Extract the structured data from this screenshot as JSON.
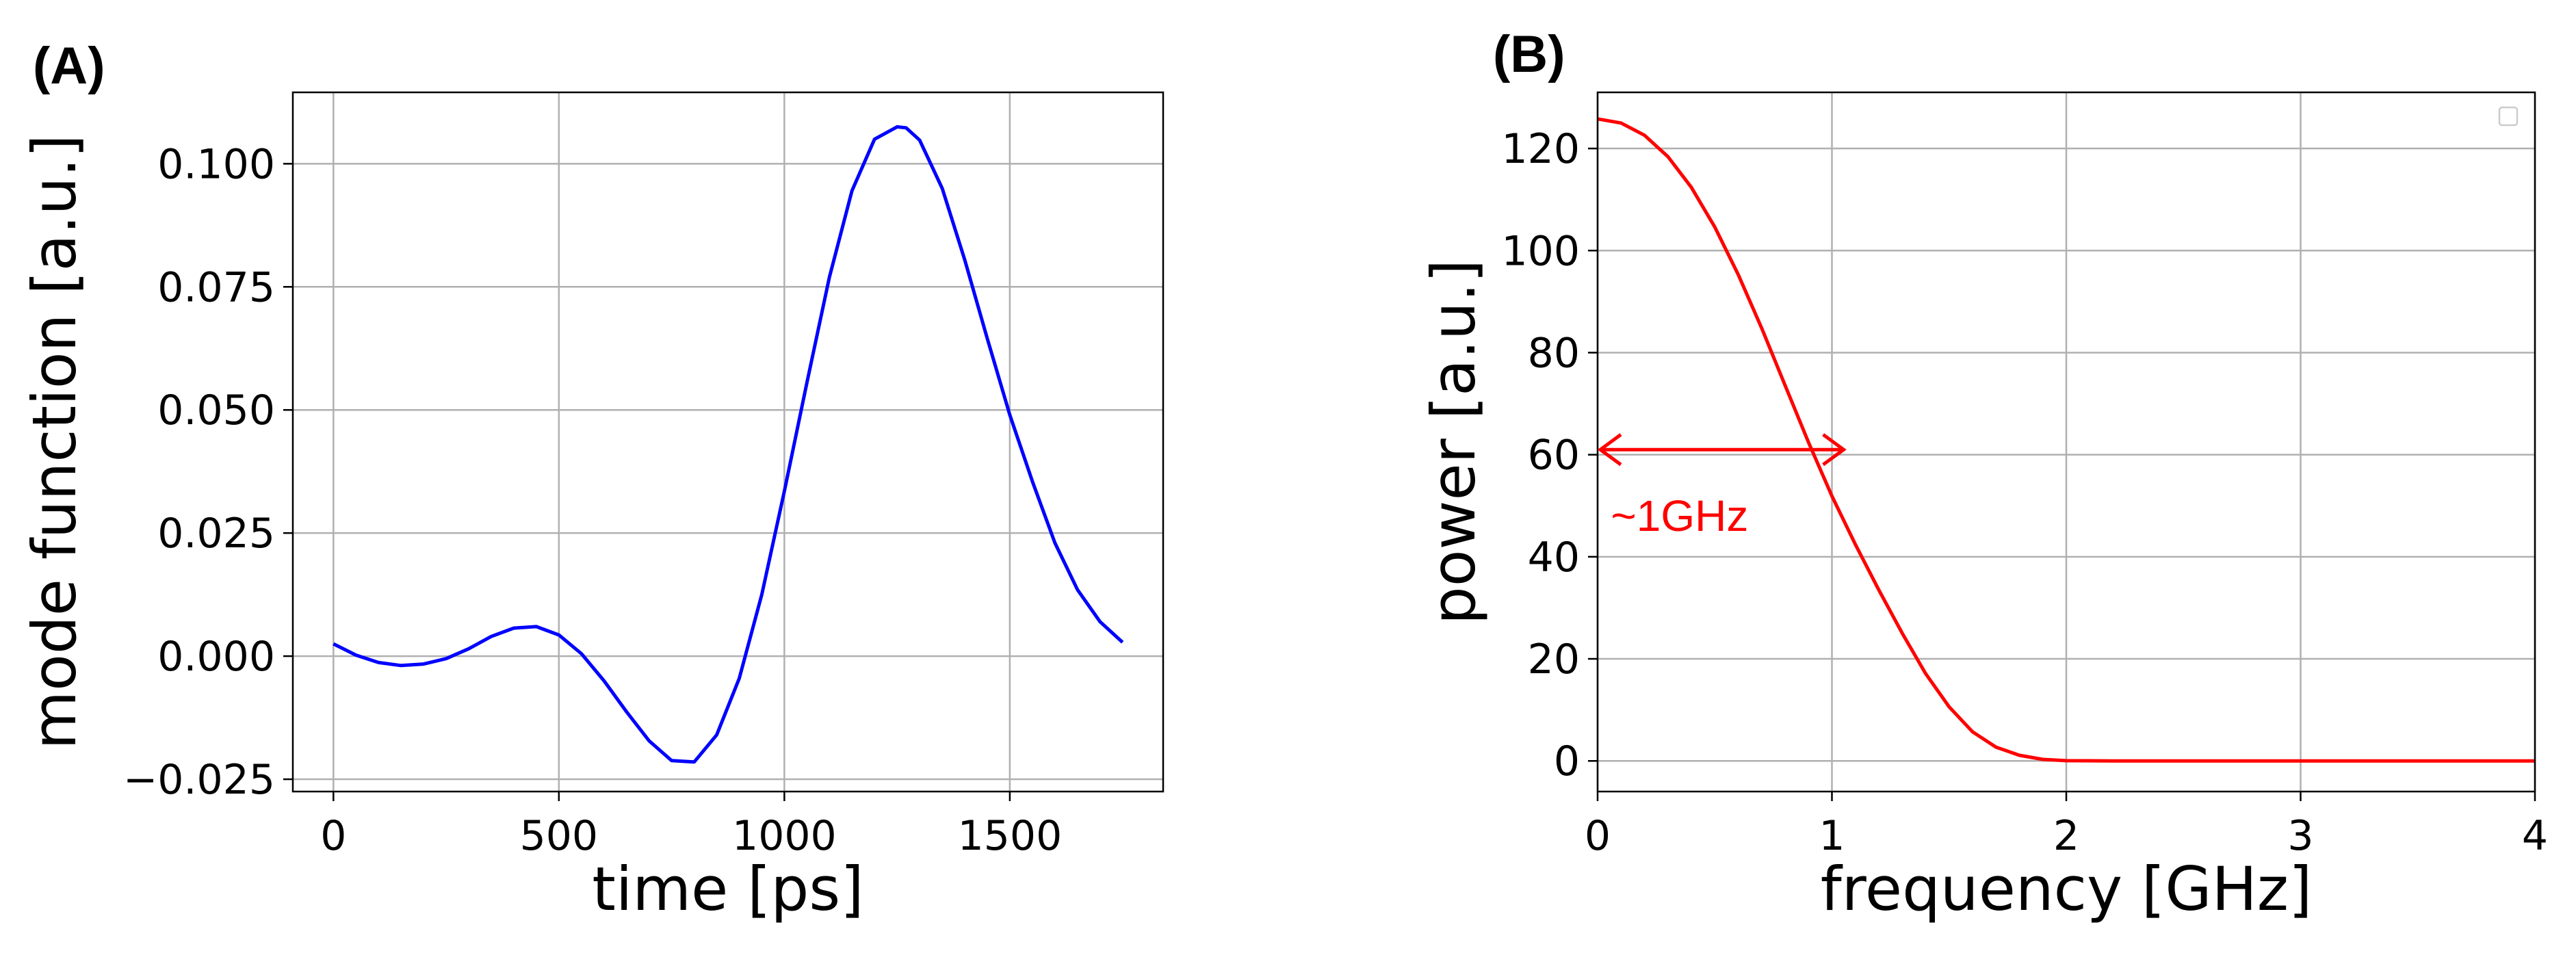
{
  "chart_data": [
    {
      "panel": "(A)",
      "type": "line",
      "title": "",
      "xlabel": "time [ps]",
      "ylabel": "mode function [a.u.]",
      "xlim": [
        -90,
        1840
      ],
      "ylim": [
        -0.0275,
        0.1145
      ],
      "xticks": [
        0,
        500,
        1000,
        1500
      ],
      "xtick_labels": [
        "0",
        "500",
        "1000",
        "1500"
      ],
      "yticks": [
        -0.025,
        0,
        0.025,
        0.05,
        0.075,
        0.1
      ],
      "ytick_labels": [
        "−0.025",
        "0.000",
        "0.025",
        "0.050",
        "0.075",
        "0.100"
      ],
      "grid": true,
      "color": "#0000ff",
      "x": [
        0,
        50,
        100,
        150,
        200,
        250,
        300,
        350,
        400,
        450,
        500,
        550,
        600,
        650,
        700,
        750,
        800,
        850,
        900,
        950,
        1000,
        1050,
        1100,
        1150,
        1200,
        1250,
        1270,
        1300,
        1350,
        1400,
        1450,
        1500,
        1550,
        1600,
        1650,
        1700,
        1750
      ],
      "y": [
        0.0025,
        0.0002,
        -0.0013,
        -0.0019,
        -0.0016,
        -0.0005,
        0.0015,
        0.004,
        0.0057,
        0.006,
        0.0043,
        0.0005,
        -0.005,
        -0.0113,
        -0.0172,
        -0.0212,
        -0.0215,
        -0.016,
        -0.0045,
        0.0125,
        0.0335,
        0.0555,
        0.077,
        0.0945,
        0.105,
        0.1075,
        0.1073,
        0.1048,
        0.095,
        0.0805,
        0.0645,
        0.049,
        0.0355,
        0.023,
        0.0135,
        0.007,
        0.0028
      ]
    },
    {
      "panel": "(B)",
      "type": "line",
      "title": "",
      "xlabel": "frequency [GHz]",
      "ylabel": "power [a.u.]",
      "xlim": [
        0,
        4
      ],
      "ylim": [
        -6,
        131
      ],
      "xticks": [
        0,
        1,
        2,
        3,
        4
      ],
      "xtick_labels": [
        "0",
        "1",
        "2",
        "3",
        "4"
      ],
      "yticks": [
        0,
        20,
        40,
        60,
        80,
        100,
        120
      ],
      "ytick_labels": [
        "0",
        "20",
        "40",
        "60",
        "80",
        "100",
        "120"
      ],
      "grid": true,
      "legend": "top-right (empty)",
      "color": "#ff0000",
      "x": [
        0,
        0.1,
        0.2,
        0.3,
        0.4,
        0.5,
        0.6,
        0.7,
        0.8,
        0.9,
        1.0,
        1.1,
        1.2,
        1.3,
        1.4,
        1.5,
        1.6,
        1.7,
        1.8,
        1.9,
        2.0,
        2.2,
        2.5,
        3.0,
        3.5,
        4.0
      ],
      "y": [
        125.8,
        125.0,
        122.6,
        118.4,
        112.4,
        104.6,
        95.3,
        84.8,
        73.6,
        62.4,
        51.9,
        42.4,
        33.5,
        25.0,
        17.1,
        10.6,
        5.7,
        2.7,
        1.1,
        0.3,
        0.05,
        0,
        0,
        0,
        0,
        0
      ],
      "annotation": {
        "text": "~1GHz",
        "color": "#ff0000",
        "arrow_from": [
          0,
          61
        ],
        "arrow_to": [
          1.05,
          61
        ],
        "text_at": [
          0.15,
          48
        ]
      }
    }
  ]
}
